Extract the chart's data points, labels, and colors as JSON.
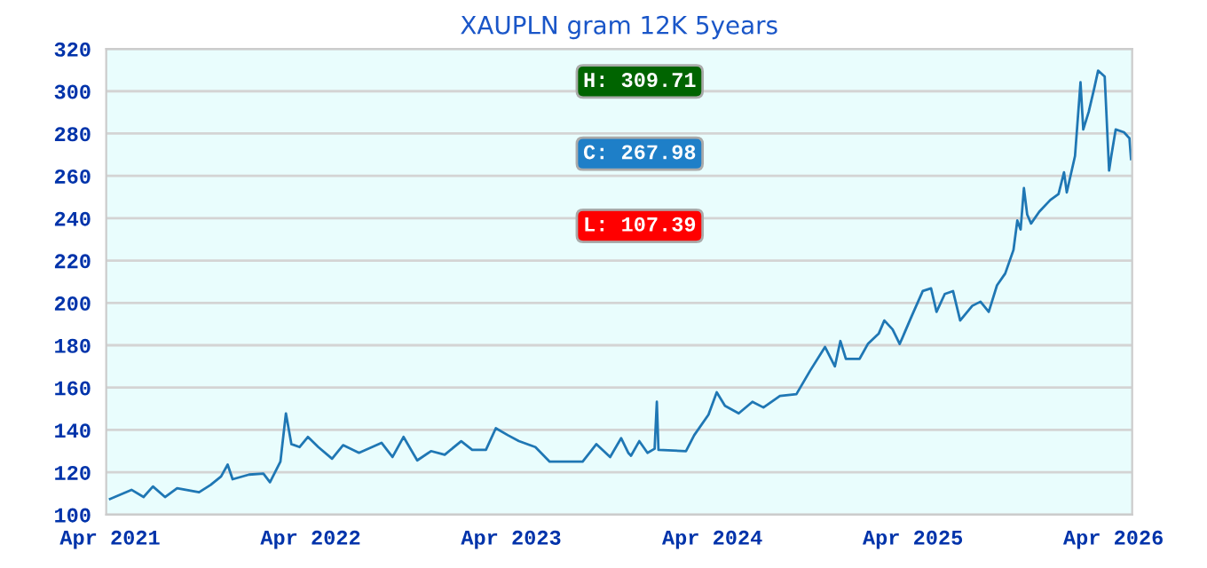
{
  "chart_data": {
    "type": "line",
    "title": "XAUPLN gram 12K 5years",
    "x": [
      "2021-04-01",
      "2021-05-10",
      "2021-06-01",
      "2021-06-18",
      "2021-07-10",
      "2021-08-01",
      "2021-09-10",
      "2021-10-01",
      "2021-10-20",
      "2021-11-01",
      "2021-11-10",
      "2021-12-10",
      "2022-01-05",
      "2022-01-17",
      "2022-02-05",
      "2022-02-15",
      "2022-02-25",
      "2022-03-12",
      "2022-03-27",
      "2022-04-15",
      "2022-05-10",
      "2022-05-30",
      "2022-06-28",
      "2022-08-08",
      "2022-08-28",
      "2022-09-17",
      "2022-10-12",
      "2022-11-06",
      "2022-12-01",
      "2022-12-31",
      "2023-01-20",
      "2023-02-14",
      "2023-03-04",
      "2023-03-26",
      "2023-04-15",
      "2023-05-15",
      "2023-06-10",
      "2023-07-25",
      "2023-08-09",
      "2023-09-03",
      "2023-09-28",
      "2023-10-18",
      "2023-10-31",
      "2023-11-05",
      "2023-11-20",
      "2023-12-05",
      "2023-12-18",
      "2023-12-22",
      "2023-12-25",
      "2024-02-13",
      "2024-02-28",
      "2024-03-25",
      "2024-04-09",
      "2024-04-24",
      "2024-05-19",
      "2024-06-13",
      "2024-07-03",
      "2024-08-02",
      "2024-09-01",
      "2024-09-26",
      "2024-10-23",
      "2024-11-10",
      "2024-11-20",
      "2024-11-30",
      "2024-12-25",
      "2025-01-09",
      "2025-01-29",
      "2025-02-08",
      "2025-02-23",
      "2025-03-08",
      "2025-03-30",
      "2025-04-19",
      "2025-05-04",
      "2025-05-14",
      "2025-05-29",
      "2025-06-13",
      "2025-06-26",
      "2025-07-18",
      "2025-08-02",
      "2025-08-17",
      "2025-09-01",
      "2025-09-16",
      "2025-10-01",
      "2025-10-08",
      "2025-10-14",
      "2025-10-20",
      "2025-10-26",
      "2025-11-02",
      "2025-11-17",
      "2025-12-07",
      "2025-12-22",
      "2026-01-01",
      "2026-01-06",
      "2026-01-21",
      "2026-01-31",
      "2026-02-05",
      "2026-02-15",
      "2026-02-25",
      "2026-03-04",
      "2026-03-16",
      "2026-03-24",
      "2026-03-28",
      "2026-04-05",
      "2026-04-20",
      "2026-04-30",
      "2026-05-03"
    ],
    "values": [
      107.39,
      111.7,
      108.3,
      113.3,
      108.3,
      112.5,
      110.6,
      114,
      118,
      123.6,
      116.7,
      118.9,
      119.4,
      115.3,
      125,
      147.8,
      133.3,
      131.9,
      136.7,
      131.9,
      126.4,
      132.8,
      129.2,
      133.9,
      127.2,
      136.7,
      125.6,
      130,
      128.3,
      134.7,
      130.6,
      130.6,
      140.8,
      137.5,
      134.7,
      131.9,
      125,
      125,
      125,
      133.3,
      127.2,
      136.1,
      129.2,
      127.8,
      134.7,
      129.2,
      131.1,
      153.3,
      130.6,
      130,
      137.5,
      147.2,
      157.8,
      151.4,
      147.8,
      153.3,
      150.6,
      156.1,
      156.9,
      168,
      179.2,
      170,
      182,
      173.6,
      173.6,
      180.6,
      185.6,
      191.7,
      187.5,
      180.6,
      193.9,
      205.6,
      206.9,
      195.8,
      204.2,
      205.6,
      191.7,
      198.6,
      200.6,
      195.8,
      208.3,
      213.9,
      225,
      238.9,
      234.7,
      254.2,
      241.7,
      237.5,
      243.1,
      248.6,
      251.4,
      261.7,
      252.2,
      269.4,
      304.2,
      281.9,
      290.3,
      301.4,
      309.71,
      306.9,
      262.5,
      269.4,
      281.9,
      280.6,
      277.8,
      267.98
    ],
    "color": "#1f77b4",
    "xlim": [
      "2021-03-25",
      "2026-05-05"
    ],
    "xticks": [
      {
        "value": "2021-04-01",
        "label": "Apr 2021"
      },
      {
        "value": "2022-04-01",
        "label": "Apr 2022"
      },
      {
        "value": "2023-04-01",
        "label": "Apr 2023"
      },
      {
        "value": "2024-04-01",
        "label": "Apr 2024"
      },
      {
        "value": "2025-04-01",
        "label": "Apr 2025"
      },
      {
        "value": "2026-04-01",
        "label": "Apr 2026"
      }
    ],
    "ylim": [
      100,
      320
    ],
    "yticks": [
      100,
      120,
      140,
      160,
      180,
      200,
      220,
      240,
      260,
      280,
      300,
      320
    ],
    "grid": "y",
    "annotations": [
      "H: 309.71",
      "C: 267.98",
      "L: 107.39"
    ]
  }
}
